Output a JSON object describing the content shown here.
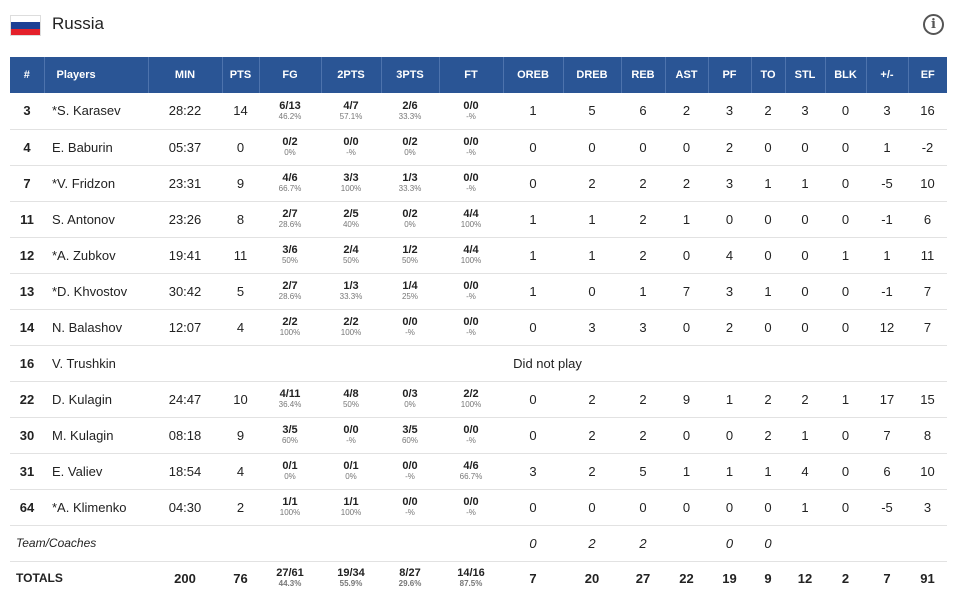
{
  "team": {
    "name": "Russia"
  },
  "icons": {
    "info": "info-icon",
    "flag": "russia-flag-icon"
  },
  "colors": {
    "header_bg": "#2a5595",
    "header_text": "#ffffff"
  },
  "columns": [
    "#",
    "Players",
    "MIN",
    "PTS",
    "FG",
    "2PTS",
    "3PTS",
    "FT",
    "OREB",
    "DREB",
    "REB",
    "AST",
    "PF",
    "TO",
    "STL",
    "BLK",
    "+/-",
    "EF"
  ],
  "players": [
    {
      "num": "3",
      "name": "*S. Karasev",
      "min": "28:22",
      "pts": "14",
      "fg": [
        "6/13",
        "46.2%"
      ],
      "p2": [
        "4/7",
        "57.1%"
      ],
      "p3": [
        "2/6",
        "33.3%"
      ],
      "ft": [
        "0/0",
        "-%"
      ],
      "oreb": "1",
      "dreb": "5",
      "reb": "6",
      "ast": "2",
      "pf": "3",
      "to": "2",
      "stl": "3",
      "blk": "0",
      "pm": "3",
      "ef": "16"
    },
    {
      "num": "4",
      "name": "E. Baburin",
      "min": "05:37",
      "pts": "0",
      "fg": [
        "0/2",
        "0%"
      ],
      "p2": [
        "0/0",
        "-%"
      ],
      "p3": [
        "0/2",
        "0%"
      ],
      "ft": [
        "0/0",
        "-%"
      ],
      "oreb": "0",
      "dreb": "0",
      "reb": "0",
      "ast": "0",
      "pf": "2",
      "to": "0",
      "stl": "0",
      "blk": "0",
      "pm": "1",
      "ef": "-2"
    },
    {
      "num": "7",
      "name": "*V. Fridzon",
      "min": "23:31",
      "pts": "9",
      "fg": [
        "4/6",
        "66.7%"
      ],
      "p2": [
        "3/3",
        "100%"
      ],
      "p3": [
        "1/3",
        "33.3%"
      ],
      "ft": [
        "0/0",
        "-%"
      ],
      "oreb": "0",
      "dreb": "2",
      "reb": "2",
      "ast": "2",
      "pf": "3",
      "to": "1",
      "stl": "1",
      "blk": "0",
      "pm": "-5",
      "ef": "10"
    },
    {
      "num": "11",
      "name": "S. Antonov",
      "min": "23:26",
      "pts": "8",
      "fg": [
        "2/7",
        "28.6%"
      ],
      "p2": [
        "2/5",
        "40%"
      ],
      "p3": [
        "0/2",
        "0%"
      ],
      "ft": [
        "4/4",
        "100%"
      ],
      "oreb": "1",
      "dreb": "1",
      "reb": "2",
      "ast": "1",
      "pf": "0",
      "to": "0",
      "stl": "0",
      "blk": "0",
      "pm": "-1",
      "ef": "6"
    },
    {
      "num": "12",
      "name": "*A. Zubkov",
      "min": "19:41",
      "pts": "11",
      "fg": [
        "3/6",
        "50%"
      ],
      "p2": [
        "2/4",
        "50%"
      ],
      "p3": [
        "1/2",
        "50%"
      ],
      "ft": [
        "4/4",
        "100%"
      ],
      "oreb": "1",
      "dreb": "1",
      "reb": "2",
      "ast": "0",
      "pf": "4",
      "to": "0",
      "stl": "0",
      "blk": "1",
      "pm": "1",
      "ef": "11"
    },
    {
      "num": "13",
      "name": "*D. Khvostov",
      "min": "30:42",
      "pts": "5",
      "fg": [
        "2/7",
        "28.6%"
      ],
      "p2": [
        "1/3",
        "33.3%"
      ],
      "p3": [
        "1/4",
        "25%"
      ],
      "ft": [
        "0/0",
        "-%"
      ],
      "oreb": "1",
      "dreb": "0",
      "reb": "1",
      "ast": "7",
      "pf": "3",
      "to": "1",
      "stl": "0",
      "blk": "0",
      "pm": "-1",
      "ef": "7"
    },
    {
      "num": "14",
      "name": "N. Balashov",
      "min": "12:07",
      "pts": "4",
      "fg": [
        "2/2",
        "100%"
      ],
      "p2": [
        "2/2",
        "100%"
      ],
      "p3": [
        "0/0",
        "-%"
      ],
      "ft": [
        "0/0",
        "-%"
      ],
      "oreb": "0",
      "dreb": "3",
      "reb": "3",
      "ast": "0",
      "pf": "2",
      "to": "0",
      "stl": "0",
      "blk": "0",
      "pm": "12",
      "ef": "7"
    },
    {
      "num": "16",
      "name": "V. Trushkin",
      "dnp": "Did not play"
    },
    {
      "num": "22",
      "name": "D. Kulagin",
      "min": "24:47",
      "pts": "10",
      "fg": [
        "4/11",
        "36.4%"
      ],
      "p2": [
        "4/8",
        "50%"
      ],
      "p3": [
        "0/3",
        "0%"
      ],
      "ft": [
        "2/2",
        "100%"
      ],
      "oreb": "0",
      "dreb": "2",
      "reb": "2",
      "ast": "9",
      "pf": "1",
      "to": "2",
      "stl": "2",
      "blk": "1",
      "pm": "17",
      "ef": "15"
    },
    {
      "num": "30",
      "name": "M. Kulagin",
      "min": "08:18",
      "pts": "9",
      "fg": [
        "3/5",
        "60%"
      ],
      "p2": [
        "0/0",
        "-%"
      ],
      "p3": [
        "3/5",
        "60%"
      ],
      "ft": [
        "0/0",
        "-%"
      ],
      "oreb": "0",
      "dreb": "2",
      "reb": "2",
      "ast": "0",
      "pf": "0",
      "to": "2",
      "stl": "1",
      "blk": "0",
      "pm": "7",
      "ef": "8"
    },
    {
      "num": "31",
      "name": "E. Valiev",
      "min": "18:54",
      "pts": "4",
      "fg": [
        "0/1",
        "0%"
      ],
      "p2": [
        "0/1",
        "0%"
      ],
      "p3": [
        "0/0",
        "-%"
      ],
      "ft": [
        "4/6",
        "66.7%"
      ],
      "oreb": "3",
      "dreb": "2",
      "reb": "5",
      "ast": "1",
      "pf": "1",
      "to": "1",
      "stl": "4",
      "blk": "0",
      "pm": "6",
      "ef": "10"
    },
    {
      "num": "64",
      "name": "*A. Klimenko",
      "min": "04:30",
      "pts": "2",
      "fg": [
        "1/1",
        "100%"
      ],
      "p2": [
        "1/1",
        "100%"
      ],
      "p3": [
        "0/0",
        "-%"
      ],
      "ft": [
        "0/0",
        "-%"
      ],
      "oreb": "0",
      "dreb": "0",
      "reb": "0",
      "ast": "0",
      "pf": "0",
      "to": "0",
      "stl": "1",
      "blk": "0",
      "pm": "-5",
      "ef": "3"
    }
  ],
  "coaches": {
    "label": "Team/Coaches",
    "oreb": "0",
    "dreb": "2",
    "reb": "2",
    "pf": "0",
    "to": "0"
  },
  "totals": {
    "label": "TOTALS",
    "min": "200",
    "pts": "76",
    "fg": [
      "27/61",
      "44.3%"
    ],
    "p2": [
      "19/34",
      "55.9%"
    ],
    "p3": [
      "8/27",
      "29.6%"
    ],
    "ft": [
      "14/16",
      "87.5%"
    ],
    "oreb": "7",
    "dreb": "20",
    "reb": "27",
    "ast": "22",
    "pf": "19",
    "to": "9",
    "stl": "12",
    "blk": "2",
    "pm": "7",
    "ef": "91"
  }
}
